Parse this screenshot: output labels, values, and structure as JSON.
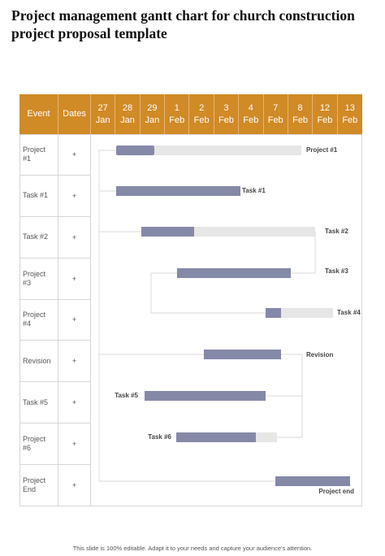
{
  "header": {
    "title": "Project management gantt chart for church construction project proposal template"
  },
  "table": {
    "headers": [
      "Event",
      "Dates"
    ],
    "date_columns": [
      {
        "day": "27",
        "month": "Jan"
      },
      {
        "day": "28",
        "month": "Jan"
      },
      {
        "day": "29",
        "month": "Jan"
      },
      {
        "day": "1",
        "month": "Feb"
      },
      {
        "day": "2",
        "month": "Feb"
      },
      {
        "day": "3",
        "month": "Feb"
      },
      {
        "day": "4",
        "month": "Feb"
      },
      {
        "day": "7",
        "month": "Feb"
      },
      {
        "day": "8",
        "month": "Feb"
      },
      {
        "day": "12",
        "month": "Feb"
      },
      {
        "day": "13",
        "month": "Feb"
      }
    ],
    "rows": [
      {
        "event": "Project #1",
        "dates": "+"
      },
      {
        "event": "Task #1",
        "dates": "+"
      },
      {
        "event": "Task #2",
        "dates": "+"
      },
      {
        "event": "Project #3",
        "dates": "+"
      },
      {
        "event": "Project #4",
        "dates": "+"
      },
      {
        "event": "Revision",
        "dates": "+"
      },
      {
        "event": "Task #5",
        "dates": "+"
      },
      {
        "event": "Project #6",
        "dates": "+"
      },
      {
        "event": "Project End",
        "dates": "+"
      }
    ]
  },
  "bars": [
    {
      "label": "Project #1"
    },
    {
      "label": "Task #1"
    },
    {
      "label": "Task #2"
    },
    {
      "label": "Task #3"
    },
    {
      "label": "Task #4"
    },
    {
      "label": "Revision"
    },
    {
      "label": "Task #5"
    },
    {
      "label": "Task #6"
    },
    {
      "label": "Project end"
    }
  ],
  "footer": {
    "note": "This slide is 100% editable. Adapt it to your needs and capture your audience's attention."
  }
}
